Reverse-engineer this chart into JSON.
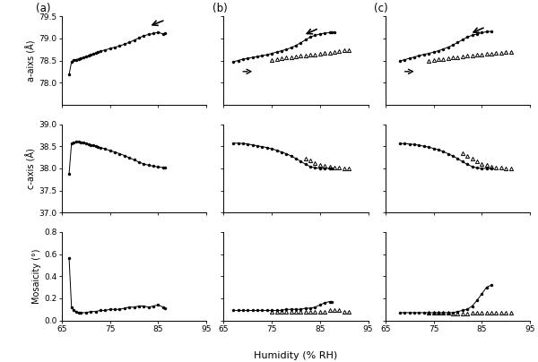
{
  "fig_width": 6.0,
  "fig_height": 4.04,
  "dpi": 100,
  "background_color": "#ffffff",
  "xlim": [
    65,
    95
  ],
  "xticks": [
    65,
    75,
    85,
    95
  ],
  "a_ylim": [
    77.5,
    79.5
  ],
  "a_yticks": [
    78.0,
    78.5,
    79.0,
    79.5
  ],
  "c_ylim": [
    37.0,
    39.0
  ],
  "c_yticks": [
    37.0,
    37.5,
    38.0,
    38.5,
    39.0
  ],
  "m_ylim": [
    0.0,
    0.8
  ],
  "m_yticks": [
    0.0,
    0.2,
    0.4,
    0.6,
    0.8
  ],
  "col_labels": [
    "(a)",
    "(b)",
    "(c)"
  ],
  "ylabel_a": "a-aixs (Å)",
  "ylabel_c": "c-axis (Å)",
  "ylabel_m": "Mosaicity (°)",
  "xlabel": "Humidity (% RH)",
  "col_a": {
    "a_x": [
      66.5,
      67.0,
      67.5,
      68.0,
      68.5,
      69.0,
      69.5,
      70.0,
      70.5,
      71.0,
      71.5,
      72.0,
      72.5,
      73.0,
      74.0,
      75.0,
      76.0,
      77.0,
      78.0,
      79.0,
      80.0,
      81.0,
      82.0,
      83.0,
      84.0,
      85.0,
      86.0,
      86.5
    ],
    "a_y": [
      78.18,
      78.47,
      78.51,
      78.52,
      78.54,
      78.56,
      78.57,
      78.59,
      78.61,
      78.63,
      78.65,
      78.67,
      78.69,
      78.71,
      78.74,
      78.77,
      78.8,
      78.83,
      78.87,
      78.91,
      78.96,
      79.01,
      79.06,
      79.09,
      79.11,
      79.14,
      79.1,
      79.11
    ],
    "c_x": [
      66.5,
      67.0,
      67.5,
      68.0,
      68.5,
      69.0,
      69.5,
      70.0,
      70.5,
      71.0,
      71.5,
      72.0,
      72.5,
      73.0,
      74.0,
      75.0,
      76.0,
      77.0,
      78.0,
      79.0,
      80.0,
      81.0,
      82.0,
      83.0,
      84.0,
      85.0,
      86.0,
      86.5
    ],
    "c_y": [
      37.88,
      38.56,
      38.59,
      38.6,
      38.6,
      38.59,
      38.58,
      38.56,
      38.55,
      38.53,
      38.52,
      38.5,
      38.48,
      38.47,
      38.44,
      38.4,
      38.37,
      38.33,
      38.29,
      38.24,
      38.19,
      38.14,
      38.1,
      38.07,
      38.05,
      38.03,
      38.02,
      38.02
    ],
    "m_x": [
      66.5,
      67.0,
      67.5,
      68.0,
      68.5,
      69.0,
      70.0,
      71.0,
      72.0,
      73.0,
      74.0,
      75.0,
      76.0,
      77.0,
      78.0,
      79.0,
      80.0,
      81.0,
      82.0,
      83.0,
      84.0,
      85.0,
      86.0,
      86.5
    ],
    "m_y": [
      0.56,
      0.12,
      0.09,
      0.08,
      0.07,
      0.07,
      0.07,
      0.08,
      0.08,
      0.09,
      0.09,
      0.1,
      0.1,
      0.1,
      0.11,
      0.12,
      0.12,
      0.13,
      0.13,
      0.12,
      0.13,
      0.14,
      0.12,
      0.11
    ]
  },
  "col_b_solid": {
    "a_x": [
      67.0,
      68.0,
      69.0,
      70.0,
      71.0,
      72.0,
      73.0,
      74.0,
      75.0,
      76.0,
      77.0,
      78.0,
      79.0,
      80.0,
      81.0,
      82.0,
      83.0,
      84.0,
      85.0,
      86.0,
      87.0,
      87.5,
      88.0
    ],
    "a_y": [
      78.47,
      78.5,
      78.53,
      78.55,
      78.57,
      78.59,
      78.61,
      78.63,
      78.66,
      78.69,
      78.72,
      78.75,
      78.79,
      78.84,
      78.9,
      78.97,
      79.03,
      79.07,
      79.1,
      79.12,
      79.13,
      79.14,
      79.14
    ],
    "c_x": [
      67.0,
      68.0,
      69.0,
      70.0,
      71.0,
      72.0,
      73.0,
      74.0,
      75.0,
      76.0,
      77.0,
      78.0,
      79.0,
      80.0,
      81.0,
      82.0,
      83.0,
      84.0,
      85.0,
      86.0,
      87.0,
      87.5
    ],
    "c_y": [
      38.57,
      38.57,
      38.56,
      38.55,
      38.53,
      38.51,
      38.49,
      38.47,
      38.44,
      38.41,
      38.37,
      38.33,
      38.28,
      38.22,
      38.16,
      38.09,
      38.04,
      38.01,
      38.0,
      38.0,
      38.0,
      38.0
    ],
    "m_x": [
      67.0,
      68.0,
      69.0,
      70.0,
      71.0,
      72.0,
      73.0,
      74.0,
      75.0,
      76.0,
      77.0,
      78.0,
      79.0,
      80.0,
      81.0,
      82.0,
      83.0,
      84.0,
      85.0,
      86.0,
      87.0,
      87.5
    ],
    "m_y": [
      0.09,
      0.09,
      0.09,
      0.09,
      0.09,
      0.09,
      0.09,
      0.09,
      0.09,
      0.09,
      0.09,
      0.1,
      0.1,
      0.1,
      0.1,
      0.11,
      0.11,
      0.12,
      0.14,
      0.16,
      0.17,
      0.17
    ]
  },
  "col_b_open": {
    "a_x": [
      75.0,
      76.0,
      77.0,
      78.0,
      79.0,
      80.0,
      81.0,
      82.0,
      83.0,
      84.0,
      85.0,
      86.0,
      87.0,
      88.0,
      89.0,
      90.0,
      91.0
    ],
    "a_y": [
      78.52,
      78.54,
      78.55,
      78.57,
      78.58,
      78.6,
      78.61,
      78.62,
      78.63,
      78.64,
      78.65,
      78.67,
      78.68,
      78.7,
      78.72,
      78.73,
      78.74
    ],
    "c_x": [
      82.0,
      83.0,
      84.0,
      85.0,
      86.0,
      87.0,
      88.0,
      89.0,
      90.0,
      91.0
    ],
    "c_y": [
      38.22,
      38.18,
      38.12,
      38.08,
      38.05,
      38.03,
      38.02,
      38.01,
      38.0,
      38.0
    ],
    "m_x": [
      75.0,
      76.0,
      77.0,
      78.0,
      79.0,
      80.0,
      81.0,
      82.0,
      83.0,
      84.0,
      85.0,
      86.0,
      87.0,
      88.0,
      89.0,
      90.0,
      91.0
    ],
    "m_y": [
      0.08,
      0.08,
      0.08,
      0.08,
      0.08,
      0.08,
      0.08,
      0.08,
      0.08,
      0.08,
      0.08,
      0.08,
      0.09,
      0.09,
      0.09,
      0.08,
      0.08
    ]
  },
  "col_c_solid": {
    "a_x": [
      68.0,
      69.0,
      70.0,
      71.0,
      72.0,
      73.0,
      74.0,
      75.0,
      76.0,
      77.0,
      78.0,
      79.0,
      80.0,
      81.0,
      82.0,
      83.0,
      84.0,
      85.0,
      86.0,
      87.0
    ],
    "a_y": [
      78.49,
      78.52,
      78.55,
      78.58,
      78.61,
      78.64,
      78.66,
      78.69,
      78.72,
      78.76,
      78.8,
      78.85,
      78.91,
      78.97,
      79.03,
      79.07,
      79.1,
      79.13,
      79.15,
      79.16
    ],
    "c_x": [
      68.0,
      69.0,
      70.0,
      71.0,
      72.0,
      73.0,
      74.0,
      75.0,
      76.0,
      77.0,
      78.0,
      79.0,
      80.0,
      81.0,
      82.0,
      83.0,
      84.0,
      85.0,
      86.0,
      87.0
    ],
    "c_y": [
      38.56,
      38.56,
      38.55,
      38.54,
      38.52,
      38.5,
      38.48,
      38.45,
      38.42,
      38.38,
      38.33,
      38.28,
      38.22,
      38.15,
      38.09,
      38.04,
      38.01,
      38.0,
      38.0,
      38.0
    ],
    "m_x": [
      68.0,
      69.0,
      70.0,
      71.0,
      72.0,
      73.0,
      74.0,
      75.0,
      76.0,
      77.0,
      78.0,
      79.0,
      80.0,
      81.0,
      82.0,
      83.0,
      84.0,
      85.0,
      86.0,
      87.0
    ],
    "m_y": [
      0.07,
      0.07,
      0.07,
      0.07,
      0.07,
      0.07,
      0.07,
      0.07,
      0.07,
      0.07,
      0.07,
      0.07,
      0.08,
      0.09,
      0.1,
      0.13,
      0.18,
      0.24,
      0.3,
      0.32
    ]
  },
  "col_c_open": {
    "a_x": [
      74.0,
      75.0,
      76.0,
      77.0,
      78.0,
      79.0,
      80.0,
      81.0,
      82.0,
      83.0,
      84.0,
      85.0,
      86.0,
      87.0,
      88.0,
      89.0,
      90.0,
      91.0
    ],
    "a_y": [
      78.5,
      78.52,
      78.53,
      78.54,
      78.56,
      78.57,
      78.58,
      78.6,
      78.61,
      78.62,
      78.63,
      78.64,
      78.65,
      78.66,
      78.67,
      78.68,
      78.69,
      78.7
    ],
    "c_x": [
      81.0,
      82.0,
      83.0,
      84.0,
      85.0,
      86.0,
      87.0,
      88.0,
      89.0,
      90.0,
      91.0
    ],
    "c_y": [
      38.35,
      38.28,
      38.22,
      38.15,
      38.1,
      38.07,
      38.04,
      38.02,
      38.01,
      38.0,
      38.0
    ],
    "m_x": [
      74.0,
      75.0,
      76.0,
      77.0,
      78.0,
      79.0,
      80.0,
      81.0,
      82.0,
      83.0,
      84.0,
      85.0,
      86.0,
      87.0,
      88.0,
      89.0,
      90.0,
      91.0
    ],
    "m_y": [
      0.07,
      0.07,
      0.07,
      0.07,
      0.07,
      0.06,
      0.06,
      0.06,
      0.06,
      0.07,
      0.07,
      0.07,
      0.07,
      0.07,
      0.07,
      0.07,
      0.07,
      0.07
    ]
  }
}
